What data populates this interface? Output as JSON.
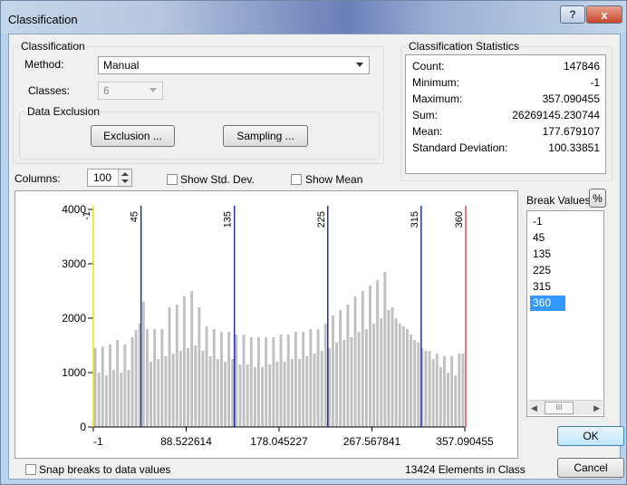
{
  "window": {
    "title": "Classification",
    "help_label": "?",
    "close_label": "x"
  },
  "classification": {
    "group_title": "Classification",
    "method_label": "Method:",
    "method_value": "Manual",
    "classes_label": "Classes:",
    "classes_value": "6"
  },
  "exclusion": {
    "group_title": "Data Exclusion",
    "exclusion_button": "Exclusion ...",
    "sampling_button": "Sampling ..."
  },
  "statistics": {
    "group_title": "Classification Statistics",
    "rows": [
      {
        "key": "Count:",
        "value": "147846"
      },
      {
        "key": "Minimum:",
        "value": "-1"
      },
      {
        "key": "Maximum:",
        "value": "357.090455"
      },
      {
        "key": "Sum:",
        "value": "26269145.230744"
      },
      {
        "key": "Mean:",
        "value": "177.679107"
      },
      {
        "key": "Standard Deviation:",
        "value": "100.33851"
      }
    ]
  },
  "columns": {
    "label": "Columns:",
    "value": "100"
  },
  "show_std_dev": {
    "label": "Show Std. Dev.",
    "checked": false
  },
  "show_mean": {
    "label": "Show Mean",
    "checked": false
  },
  "break_values": {
    "label": "Break Values",
    "pct_button": "%",
    "items": [
      "-1",
      "45",
      "135",
      "225",
      "315",
      "360"
    ],
    "selected_index": 5,
    "scroll_thumb_label": "III"
  },
  "chart_data": {
    "type": "bar",
    "xlim": [
      -1,
      357.090455
    ],
    "ylim": [
      0,
      4000
    ],
    "yticks": [
      0,
      1000,
      2000,
      3000,
      4000
    ],
    "xtick_labels": [
      "-1",
      "88.522614",
      "178.045227",
      "267.567841",
      "357.090455"
    ],
    "values": [
      1450,
      1000,
      1480,
      950,
      1520,
      1050,
      1600,
      1000,
      1520,
      1050,
      1650,
      1780,
      1900,
      2300,
      1800,
      1200,
      1800,
      1250,
      1800,
      1300,
      2200,
      1350,
      2250,
      1400,
      2400,
      1450,
      2500,
      1500,
      2200,
      1400,
      1850,
      1300,
      1800,
      1250,
      1750,
      1200,
      1750,
      1250,
      1700,
      1150,
      1700,
      1150,
      1650,
      1100,
      1650,
      1100,
      1650,
      1150,
      1650,
      1200,
      1700,
      1200,
      1700,
      1250,
      1750,
      1250,
      1750,
      1300,
      1800,
      1350,
      1800,
      1400,
      1900,
      1450,
      2050,
      1550,
      2150,
      1600,
      2250,
      1650,
      2400,
      1750,
      2500,
      1800,
      2600,
      1900,
      2700,
      2000,
      2850,
      2150,
      2200,
      2000,
      1900,
      1850,
      1800,
      1700,
      1600,
      1550,
      1450,
      1400,
      1400,
      1250,
      1350,
      1100,
      1300,
      1000,
      1300,
      950,
      1350,
      1350
    ],
    "breaks": [
      {
        "value": -1,
        "label": "-1",
        "color": "#f0e000"
      },
      {
        "value": 45,
        "label": "45",
        "color": "#2030a0"
      },
      {
        "value": 135,
        "label": "135",
        "color": "#2030a0"
      },
      {
        "value": 225,
        "label": "225",
        "color": "#2030a0"
      },
      {
        "value": 315,
        "label": "315",
        "color": "#2030a0"
      },
      {
        "value": 360,
        "label": "360",
        "color": "#e05050"
      }
    ],
    "bar_color": "#c0c0c0"
  },
  "snap": {
    "label": "Snap breaks to data values",
    "checked": false
  },
  "elements_in_class": "13424 Elements in Class",
  "ok_button": "OK",
  "cancel_button": "Cancel"
}
